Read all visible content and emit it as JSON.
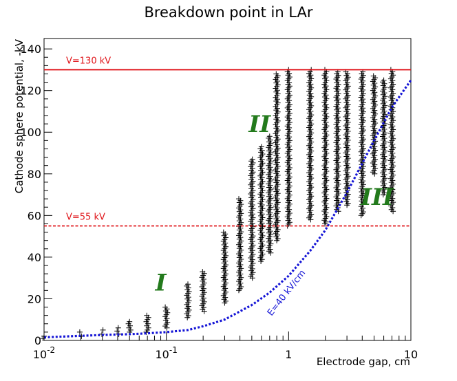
{
  "chart_data": {
    "type": "scatter",
    "title": "Breakdown point in LAr",
    "xlabel": "Electrode gap, cm",
    "ylabel": "Cathode sphere potential, -kV",
    "x_scale": "log",
    "xlim": [
      0.01,
      10
    ],
    "ylim": [
      0,
      145
    ],
    "x_tick_labels": [
      {
        "value": 0.01,
        "base": "10",
        "exp": "-2"
      },
      {
        "value": 0.1,
        "base": "10",
        "exp": "-1"
      },
      {
        "value": 1,
        "base": "1",
        "exp": ""
      },
      {
        "value": 10,
        "base": "10",
        "exp": ""
      }
    ],
    "y_ticks": [
      0,
      20,
      40,
      60,
      80,
      100,
      120,
      140
    ],
    "reference_lines": [
      {
        "label": "V=130 kV",
        "y": 130,
        "style": "solid",
        "color": "#e0161b"
      },
      {
        "label": "V=55 kV",
        "y": 55,
        "style": "dashed",
        "color": "#e0161b"
      }
    ],
    "curve": {
      "label": "E=40 kV/cm",
      "color": "#1515d6",
      "style": "dotted",
      "x": [
        0.01,
        0.02,
        0.03,
        0.05,
        0.07,
        0.1,
        0.15,
        0.2,
        0.3,
        0.5,
        0.7,
        1,
        1.5,
        2,
        3,
        4,
        5,
        7,
        10
      ],
      "y": [
        1.5,
        2.2,
        2.6,
        3.0,
        3.4,
        4.0,
        5.0,
        6.8,
        10,
        17,
        23,
        31,
        43,
        53,
        71,
        85,
        96,
        112,
        125
      ]
    },
    "regions": [
      {
        "label": "I",
        "x": 0.09,
        "y": 24
      },
      {
        "label": "II",
        "x": 0.58,
        "y": 100
      },
      {
        "label": "III",
        "x": 5.3,
        "y": 65
      }
    ],
    "series": [
      {
        "name": "breakdown points",
        "marker": "+",
        "color": "#000000",
        "clusters": [
          {
            "x": 0.01,
            "ymin": 1,
            "ymax": 2
          },
          {
            "x": 0.02,
            "ymin": 2,
            "ymax": 4
          },
          {
            "x": 0.03,
            "ymin": 3,
            "ymax": 5
          },
          {
            "x": 0.04,
            "ymin": 3,
            "ymax": 6
          },
          {
            "x": 0.05,
            "ymin": 4,
            "ymax": 9
          },
          {
            "x": 0.07,
            "ymin": 4,
            "ymax": 12
          },
          {
            "x": 0.1,
            "ymin": 6,
            "ymax": 16
          },
          {
            "x": 0.15,
            "ymin": 11,
            "ymax": 27
          },
          {
            "x": 0.2,
            "ymin": 14,
            "ymax": 33
          },
          {
            "x": 0.3,
            "ymin": 18,
            "ymax": 52
          },
          {
            "x": 0.4,
            "ymin": 24,
            "ymax": 68
          },
          {
            "x": 0.5,
            "ymin": 30,
            "ymax": 87
          },
          {
            "x": 0.6,
            "ymin": 38,
            "ymax": 93
          },
          {
            "x": 0.7,
            "ymin": 42,
            "ymax": 98
          },
          {
            "x": 0.8,
            "ymin": 48,
            "ymax": 128
          },
          {
            "x": 1.0,
            "ymin": 55,
            "ymax": 130
          },
          {
            "x": 1.5,
            "ymin": 58,
            "ymax": 130
          },
          {
            "x": 2.0,
            "ymin": 56,
            "ymax": 130
          },
          {
            "x": 2.5,
            "ymin": 62,
            "ymax": 129
          },
          {
            "x": 3.0,
            "ymin": 65,
            "ymax": 129
          },
          {
            "x": 4.0,
            "ymin": 60,
            "ymax": 129
          },
          {
            "x": 5.0,
            "ymin": 80,
            "ymax": 127
          },
          {
            "x": 6.0,
            "ymin": 70,
            "ymax": 125
          },
          {
            "x": 7.0,
            "ymin": 62,
            "ymax": 130
          }
        ]
      }
    ]
  }
}
